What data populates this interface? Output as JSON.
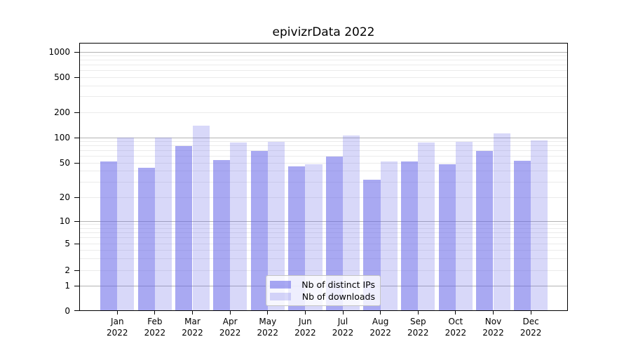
{
  "title": "epivizrData 2022",
  "chart_data": {
    "type": "bar",
    "title": "epivizrData 2022",
    "y_scale": "symlog",
    "grid": true,
    "legend_position": "lower center",
    "categories": [
      "Jan",
      "Feb",
      "Mar",
      "Apr",
      "May",
      "Jun",
      "Jul",
      "Aug",
      "Sep",
      "Oct",
      "Nov",
      "Dec"
    ],
    "x_year": "2022",
    "y_ticks": [
      0,
      1,
      2,
      5,
      10,
      20,
      50,
      100,
      200,
      500,
      1000
    ],
    "ylim": [
      0,
      1300
    ],
    "series": [
      {
        "name": "Nb of distinct IPs",
        "values": [
          52,
          44,
          80,
          54,
          70,
          46,
          60,
          32,
          52,
          48,
          69,
          53
        ]
      },
      {
        "name": "Nb of downloads",
        "values": [
          100,
          101,
          140,
          88,
          89,
          48,
          107,
          52,
          87,
          90,
          113,
          93
        ]
      }
    ]
  },
  "legend": {
    "items": [
      "Nb of distinct IPs",
      "Nb of downloads"
    ]
  },
  "colors": {
    "bar_distinct_ips": "rgba(99,99,232,0.55)",
    "bar_downloads": "rgba(99,99,232,0.25)",
    "bar_base_hex": "#6363e8",
    "grid_major": "#b3b3b3",
    "grid_minor": "#ebebeb",
    "axis": "#000000",
    "legend_border": "#c4c4c4"
  }
}
